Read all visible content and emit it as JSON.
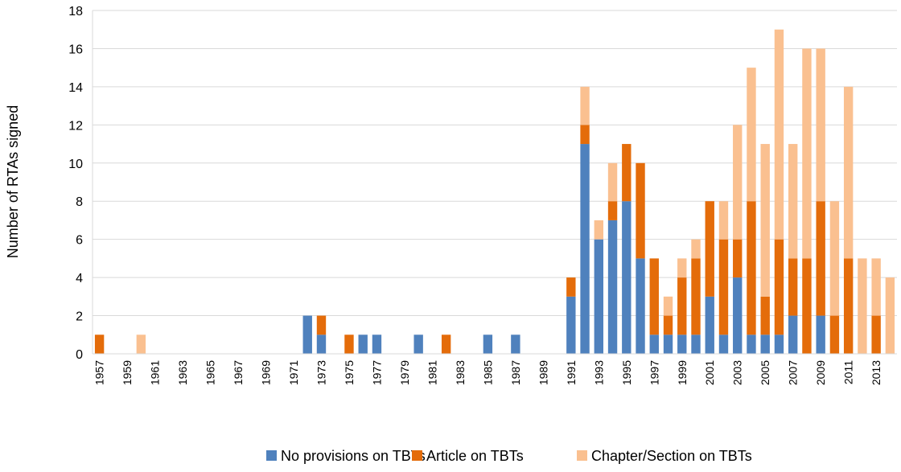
{
  "chart_data": {
    "type": "stacked_bar",
    "y_label": "Number of RTAs signed",
    "categories": [
      "1957",
      null,
      "1959",
      null,
      "1961",
      null,
      "1963",
      null,
      "1965",
      null,
      "1967",
      null,
      "1969",
      null,
      "1971",
      null,
      "1973",
      null,
      "1975",
      null,
      "1977",
      null,
      "1979",
      null,
      "1981",
      null,
      "1983",
      null,
      "1985",
      null,
      "1987",
      null,
      "1989",
      null,
      "1991",
      null,
      "1993",
      null,
      "1995",
      null,
      "1997",
      null,
      "1999",
      null,
      "2001",
      null,
      "2003",
      null,
      "2005",
      null,
      "2007",
      null,
      "2009",
      null,
      "2011",
      null,
      "2013",
      null
    ],
    "series": [
      {
        "name": "No provisions on TBTs",
        "color": "#4f81bd",
        "values": [
          0,
          0,
          0,
          0,
          0,
          0,
          0,
          0,
          0,
          0,
          0,
          0,
          0,
          0,
          0,
          2,
          1,
          0,
          0,
          1,
          1,
          0,
          0,
          1,
          0,
          0,
          0,
          0,
          1,
          0,
          1,
          0,
          0,
          0,
          3,
          11,
          6,
          7,
          8,
          5,
          1,
          1,
          1,
          1,
          3,
          1,
          4,
          1,
          1,
          1,
          2,
          0,
          2,
          0,
          0,
          0,
          0,
          0
        ]
      },
      {
        "name": "Article on TBTs",
        "color": "#e46c0a",
        "values": [
          1,
          0,
          0,
          0,
          0,
          0,
          0,
          0,
          0,
          0,
          0,
          0,
          0,
          0,
          0,
          0,
          1,
          0,
          1,
          0,
          0,
          0,
          0,
          0,
          0,
          1,
          0,
          0,
          0,
          0,
          0,
          0,
          0,
          0,
          1,
          1,
          0,
          1,
          3,
          5,
          4,
          1,
          3,
          4,
          5,
          5,
          2,
          7,
          2,
          5,
          3,
          5,
          6,
          2,
          5,
          0,
          2,
          0
        ]
      },
      {
        "name": "Chapter/Section on TBTs",
        "color": "#fac090",
        "values": [
          0,
          0,
          0,
          1,
          0,
          0,
          0,
          0,
          0,
          0,
          0,
          0,
          0,
          0,
          0,
          0,
          0,
          0,
          0,
          0,
          0,
          0,
          0,
          0,
          0,
          0,
          0,
          0,
          0,
          0,
          0,
          0,
          0,
          0,
          0,
          2,
          1,
          2,
          0,
          0,
          0,
          1,
          1,
          1,
          0,
          2,
          6,
          7,
          8,
          11,
          6,
          11,
          8,
          6,
          9,
          5,
          3,
          4
        ]
      }
    ],
    "ylim": [
      0,
      18
    ],
    "yticks": [
      0,
      2,
      4,
      6,
      8,
      10,
      12,
      14,
      16,
      18
    ],
    "grid": true,
    "legend": "bottom"
  }
}
